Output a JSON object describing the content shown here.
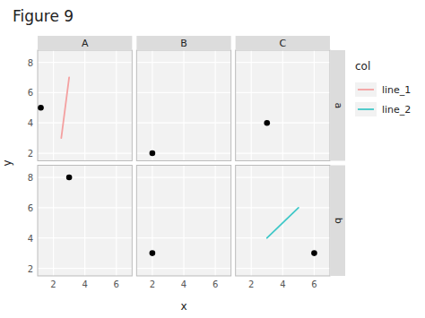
{
  "chart_data": {
    "type": "scatter",
    "title": "Figure 9",
    "x_label": "x",
    "y_label": "y",
    "cols": [
      "A",
      "B",
      "C"
    ],
    "rows": [
      "a",
      "b"
    ],
    "xlim": [
      1,
      7
    ],
    "ylim": [
      1.5,
      8.8
    ],
    "xticks": [
      2,
      4,
      6
    ],
    "yticks": [
      2,
      4,
      6,
      8
    ],
    "grid": true,
    "points": {
      "color": "#000000",
      "col": [
        "A",
        "B",
        "C",
        "A",
        "B",
        "C"
      ],
      "row": [
        "a",
        "a",
        "a",
        "b",
        "b",
        "b"
      ],
      "x": [
        1.2,
        2,
        3,
        3,
        2,
        6
      ],
      "values": [
        5,
        2,
        4,
        8,
        3,
        3
      ]
    },
    "legend_title": "col",
    "series": [
      {
        "name": "line_1",
        "color": "#f4a0a0",
        "type": "line",
        "col": "A",
        "row": "a",
        "x": [
          2.5,
          3.0
        ],
        "values": [
          3,
          7
        ]
      },
      {
        "name": "line_2",
        "color": "#40c8c8",
        "type": "line",
        "col": "C",
        "row": "b",
        "x": [
          3,
          5
        ],
        "values": [
          4,
          6
        ]
      }
    ]
  }
}
